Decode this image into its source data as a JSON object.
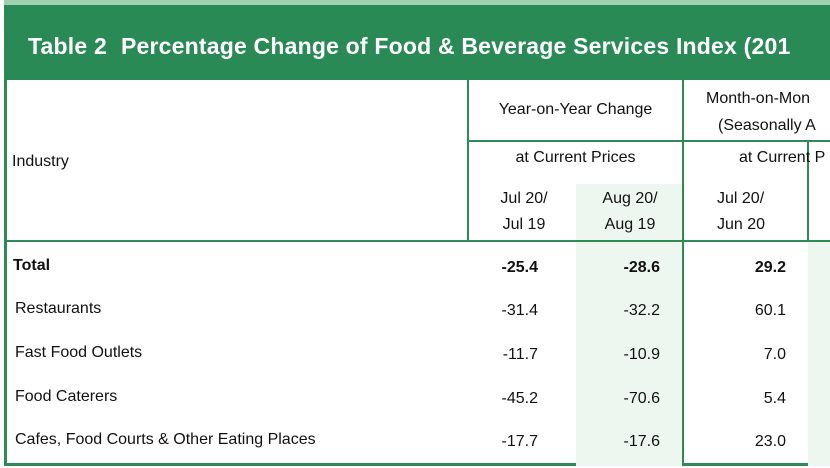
{
  "table": {
    "number": "Table 2",
    "title": "Percentage Change of Food & Beverage Services Index (201",
    "industry_label": "Industry",
    "yoy_header": "Year-on-Year Change",
    "mom_header_line1": "Month-on-Mon",
    "mom_header_line2": "(Seasonally A",
    "yoy_prices": "at Current Prices",
    "mom_prices": "at Current P",
    "periods": [
      {
        "line1": "Jul 20/",
        "line2": "Jul 19"
      },
      {
        "line1": "Aug 20/",
        "line2": "Aug 19"
      },
      {
        "line1": "Jul 20/",
        "line2": "Jun 20"
      }
    ],
    "rows": [
      {
        "name": "Total",
        "v1": "-25.4",
        "v2": "-28.6",
        "v3": "29.2"
      },
      {
        "name": "Restaurants",
        "v1": "-31.4",
        "v2": "-32.2",
        "v3": "60.1"
      },
      {
        "name": "Fast Food Outlets",
        "v1": "-11.7",
        "v2": "-10.9",
        "v3": "7.0"
      },
      {
        "name": "Food Caterers",
        "v1": "-45.2",
        "v2": "-70.6",
        "v3": "5.4"
      },
      {
        "name": "Cafes, Food Courts & Other Eating Places",
        "v1": "-17.7",
        "v2": "-17.6",
        "v3": "23.0"
      }
    ]
  }
}
